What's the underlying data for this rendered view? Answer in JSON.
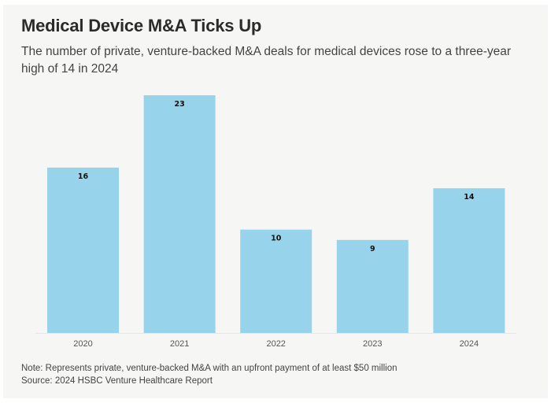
{
  "colors": {
    "bar": "#97d4ec",
    "label": "#111111",
    "tick": "#555555",
    "baseline": "#e6e6e6"
  },
  "chart_data": {
    "type": "bar",
    "title": "Medical Device M&A Ticks Up",
    "subtitle": "The number of private, venture-backed M&A deals for medical devices rose to a three-year high of 14 in 2024",
    "categories": [
      "2020",
      "2021",
      "2022",
      "2023",
      "2024"
    ],
    "values": [
      16,
      23,
      10,
      9,
      14
    ],
    "data_labels": [
      "16",
      "23",
      "10",
      "9",
      "14"
    ],
    "xlabel": "",
    "ylabel": "",
    "ylim": [
      0,
      23
    ],
    "grid": false,
    "legend": "none"
  },
  "footer": {
    "note": "Note: Represents private, venture-backed M&A with an upfront payment of at least $50 million",
    "source": "Source: 2024 HSBC Venture Healthcare Report"
  }
}
